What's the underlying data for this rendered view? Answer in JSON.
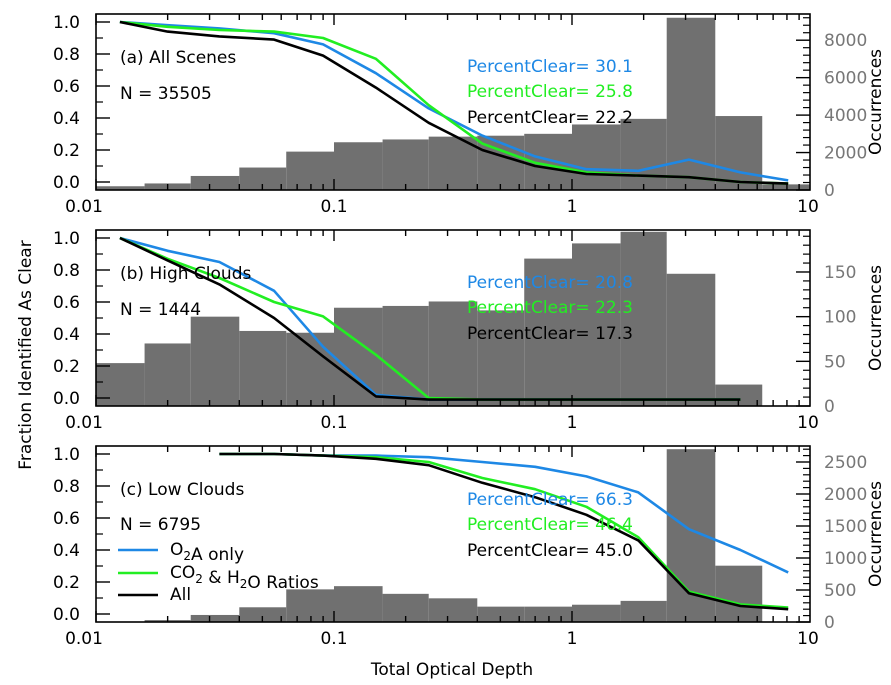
{
  "figure": {
    "ylabel_left": "Fraction Identified As Clear",
    "ylabel_right": "Occurrences",
    "xlabel": "Total Optical Depth",
    "x_tick_labels": [
      "0.01",
      "0.1",
      "1",
      "10"
    ],
    "y_tick_labels": [
      "0.0",
      "0.2",
      "0.4",
      "0.6",
      "0.8",
      "1.0"
    ],
    "percent_clear_label": "PercentClear=",
    "legend": [
      {
        "label_main": "O",
        "label_sub": "2",
        "label_tail": "A only",
        "color": "#1e88e5"
      },
      {
        "label_main": "CO",
        "label_sub": "2",
        "label_mid": " & H",
        "label_sub2": "2",
        "label_tail": "O Ratios",
        "color": "#22ee22"
      },
      {
        "label_main": "All",
        "color": "#000000"
      }
    ],
    "colors": {
      "o2a": "#1e88e5",
      "co2h2o": "#22ee22",
      "all": "#000000",
      "hist": "#707070"
    }
  },
  "chart_data": [
    {
      "type": "line",
      "panel": "(a) All Scenes",
      "n_label": "N = 35505",
      "xscale": "log",
      "xlim": [
        0.01,
        10
      ],
      "ylim": [
        -0.05,
        1.05
      ],
      "y2lim": [
        0,
        9400
      ],
      "y2_ticks": [
        0,
        2000,
        4000,
        6000,
        8000
      ],
      "y2_tick_labels": [
        "0",
        "2000",
        "4000",
        "6000",
        "8000"
      ],
      "percent_clear": [
        {
          "series": "o2a",
          "value": "30.1"
        },
        {
          "series": "co2h2o",
          "value": "25.8"
        },
        {
          "series": "all",
          "value": "22.2"
        }
      ],
      "x": [
        0.0126,
        0.02,
        0.033,
        0.056,
        0.09,
        0.15,
        0.25,
        0.42,
        0.7,
        1.15,
        1.9,
        3.1,
        5.1,
        8.1
      ],
      "series": [
        {
          "key": "o2a",
          "values": [
            1.0,
            0.98,
            0.96,
            0.93,
            0.86,
            0.68,
            0.46,
            0.29,
            0.16,
            0.08,
            0.07,
            0.14,
            0.06,
            0.01
          ]
        },
        {
          "key": "co2h2o",
          "values": [
            1.0,
            0.97,
            0.95,
            0.94,
            0.9,
            0.77,
            0.48,
            0.24,
            0.12,
            0.06,
            0.04,
            0.03,
            0.0,
            -0.01
          ]
        },
        {
          "key": "all",
          "values": [
            1.0,
            0.94,
            0.91,
            0.89,
            0.79,
            0.59,
            0.37,
            0.2,
            0.1,
            0.05,
            0.04,
            0.03,
            0.0,
            -0.01
          ]
        }
      ],
      "histogram": {
        "edges": [
          0.01,
          0.016,
          0.025,
          0.04,
          0.063,
          0.1,
          0.16,
          0.25,
          0.4,
          0.63,
          1.0,
          1.6,
          2.5,
          4.0,
          6.3,
          10
        ],
        "counts": [
          200,
          350,
          750,
          1200,
          2050,
          2550,
          2700,
          2850,
          2900,
          3000,
          3500,
          3800,
          9200,
          3950,
          300
        ]
      }
    },
    {
      "type": "line",
      "panel": "(b) High Clouds",
      "n_label": "N = 1444",
      "xscale": "log",
      "xlim": [
        0.01,
        10
      ],
      "ylim": [
        -0.05,
        1.05
      ],
      "y2lim": [
        0,
        197
      ],
      "y2_ticks": [
        0,
        50,
        100,
        150
      ],
      "y2_tick_labels": [
        "0",
        "50",
        "100",
        "150"
      ],
      "percent_clear": [
        {
          "series": "o2a",
          "value": "20.8"
        },
        {
          "series": "co2h2o",
          "value": "22.3"
        },
        {
          "series": "all",
          "value": "17.3"
        }
      ],
      "x": [
        0.0126,
        0.02,
        0.033,
        0.056,
        0.09,
        0.15,
        0.25,
        0.42,
        0.7,
        1.15,
        1.9,
        3.1,
        5.1
      ],
      "series": [
        {
          "key": "o2a",
          "values": [
            1.0,
            0.92,
            0.85,
            0.67,
            0.32,
            0.02,
            -0.01,
            -0.01,
            -0.01,
            -0.01,
            -0.01,
            -0.01,
            -0.01
          ]
        },
        {
          "key": "co2h2o",
          "values": [
            1.0,
            0.87,
            0.75,
            0.6,
            0.51,
            0.27,
            0.0,
            -0.01,
            -0.01,
            -0.01,
            -0.01,
            -0.01,
            -0.01
          ]
        },
        {
          "key": "all",
          "values": [
            1.0,
            0.86,
            0.71,
            0.5,
            0.26,
            0.01,
            -0.01,
            -0.01,
            -0.01,
            -0.01,
            -0.01,
            -0.01,
            -0.01
          ]
        }
      ],
      "histogram": {
        "edges": [
          0.01,
          0.016,
          0.025,
          0.04,
          0.063,
          0.1,
          0.16,
          0.25,
          0.4,
          0.63,
          1.0,
          1.6,
          2.5,
          4.0,
          6.3,
          10
        ],
        "counts": [
          48,
          70,
          100,
          84,
          82,
          110,
          112,
          117,
          107,
          165,
          182,
          195,
          148,
          24,
          0
        ]
      }
    },
    {
      "type": "line",
      "panel": "(c) Low Clouds",
      "n_label": "N = 6795",
      "xscale": "log",
      "xlim": [
        0.01,
        10
      ],
      "ylim": [
        -0.05,
        1.05
      ],
      "y2lim": [
        0,
        2750
      ],
      "y2_ticks": [
        0,
        500,
        1000,
        1500,
        2000,
        2500
      ],
      "y2_tick_labels": [
        "0",
        "500",
        "1000",
        "1500",
        "2000",
        "2500"
      ],
      "percent_clear": [
        {
          "series": "o2a",
          "value": "66.3"
        },
        {
          "series": "co2h2o",
          "value": "46.4"
        },
        {
          "series": "all",
          "value": "45.0"
        }
      ],
      "x": [
        0.033,
        0.056,
        0.09,
        0.15,
        0.25,
        0.42,
        0.7,
        1.15,
        1.9,
        3.1,
        5.1,
        8.1
      ],
      "series": [
        {
          "key": "o2a",
          "values": [
            1.0,
            1.0,
            0.99,
            0.99,
            0.98,
            0.95,
            0.92,
            0.86,
            0.76,
            0.53,
            0.4,
            0.26
          ]
        },
        {
          "key": "co2h2o",
          "values": [
            1.0,
            1.0,
            0.99,
            0.98,
            0.95,
            0.85,
            0.78,
            0.67,
            0.48,
            0.14,
            0.06,
            0.04
          ]
        },
        {
          "key": "all",
          "values": [
            1.0,
            1.0,
            0.99,
            0.97,
            0.93,
            0.82,
            0.73,
            0.62,
            0.46,
            0.13,
            0.05,
            0.03
          ]
        }
      ],
      "histogram": {
        "edges": [
          0.01,
          0.016,
          0.025,
          0.04,
          0.063,
          0.1,
          0.16,
          0.25,
          0.4,
          0.63,
          1.0,
          1.6,
          2.5,
          4.0,
          6.3,
          10
        ],
        "counts": [
          0,
          30,
          110,
          230,
          510,
          560,
          440,
          370,
          240,
          240,
          270,
          330,
          2700,
          880,
          0
        ]
      }
    }
  ]
}
